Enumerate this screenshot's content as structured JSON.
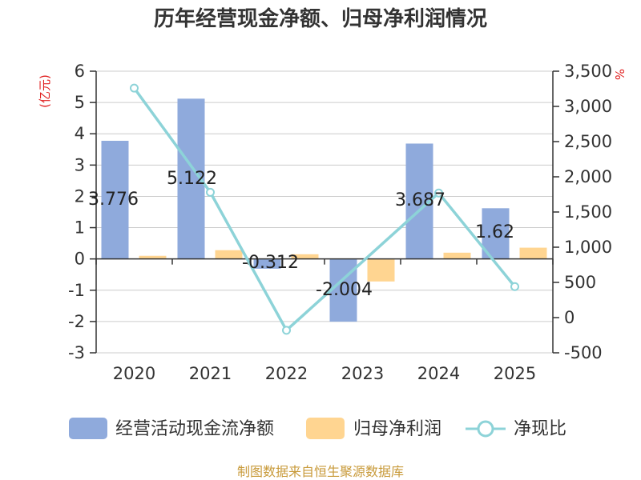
{
  "chart_data": {
    "type": "bar+line",
    "title": "历年经营现金净额、归母净利润情况",
    "categories": [
      "2020",
      "2021",
      "2022",
      "2023",
      "2024",
      "2025"
    ],
    "series": [
      {
        "name": "经营活动现金流净额",
        "type": "bar",
        "axis": "left",
        "color": "#8faadc",
        "values": [
          3.776,
          5.122,
          -0.312,
          -2.004,
          3.687,
          1.62
        ],
        "labels": [
          "3.776",
          "5.122",
          "-0.312",
          "-2.004",
          "3.687",
          "1.62"
        ]
      },
      {
        "name": "归母净利润",
        "type": "bar",
        "axis": "left",
        "color": "#ffd591",
        "values": [
          0.1,
          0.28,
          0.15,
          -0.72,
          0.2,
          0.36
        ]
      },
      {
        "name": "净现比",
        "type": "line",
        "axis": "right",
        "color": "#8dd3d8",
        "values": [
          3260,
          1780,
          -180,
          null,
          1770,
          440
        ]
      }
    ],
    "y_left": {
      "label": "(亿元)",
      "min": -3,
      "max": 6,
      "ticks": [
        "6",
        "5",
        "4",
        "3",
        "2",
        "1",
        "0",
        "-1",
        "-2",
        "-3"
      ]
    },
    "y_right": {
      "label": "%",
      "min": -500,
      "max": 3500,
      "ticks": [
        "3,500",
        "3,000",
        "2,500",
        "2,000",
        "1,500",
        "1,000",
        "500",
        "0",
        "-500"
      ]
    },
    "legend_position": "bottom",
    "grid": true
  },
  "colors": {
    "unit": "#e02020",
    "source": "#c89a3a"
  },
  "source_text": "制图数据来自恒生聚源数据库"
}
